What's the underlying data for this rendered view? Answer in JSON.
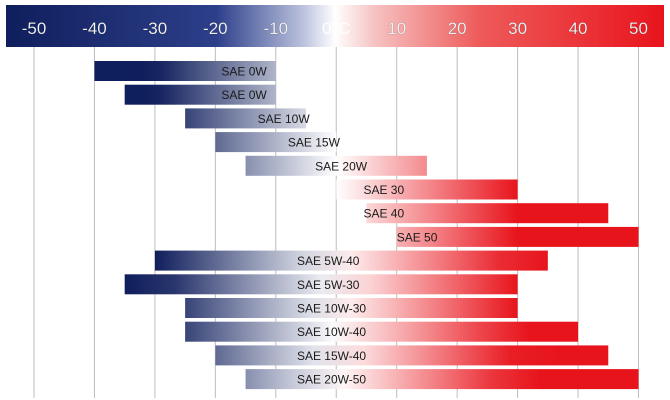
{
  "chart_data": {
    "type": "bar",
    "orientation": "horizontal-range",
    "title": "",
    "xlabel": "",
    "ylabel": "",
    "xlim": [
      -55,
      53
    ],
    "x_ticks": [
      {
        "value": -50,
        "label": "-50"
      },
      {
        "value": -40,
        "label": "-40"
      },
      {
        "value": -30,
        "label": "-30"
      },
      {
        "value": -20,
        "label": "-20"
      },
      {
        "value": -10,
        "label": "-10"
      },
      {
        "value": 0,
        "label": "0°C"
      },
      {
        "value": 10,
        "label": "10"
      },
      {
        "value": 20,
        "label": "20"
      },
      {
        "value": 30,
        "label": "30"
      },
      {
        "value": 40,
        "label": "40"
      },
      {
        "value": 50,
        "label": "50"
      }
    ],
    "grid": true,
    "legend": "none",
    "colors": {
      "cold": "#0f1e5c",
      "neutral": "#ffffff",
      "hot": "#e8141c",
      "grid": "#bdbdbd",
      "label_text": "#1a1a1a",
      "tick_text": "#ffffff"
    },
    "categories": [
      "SAE 0W",
      "SAE 0W",
      "SAE 10W",
      "SAE 15W",
      "SAE 20W",
      "SAE 30",
      "SAE 40",
      "SAE 50",
      "SAE 5W-40",
      "SAE 5W-30",
      "SAE 10W-30",
      "SAE 10W-40",
      "SAE 15W-40",
      "SAE 20W-50"
    ],
    "series": [
      {
        "ranges": [
          [
            -40,
            -10
          ],
          [
            -35,
            -10
          ],
          [
            -25,
            -5
          ],
          [
            -20,
            0
          ],
          [
            -15,
            15
          ],
          [
            0,
            30
          ],
          [
            5,
            45
          ],
          [
            10,
            50
          ],
          [
            -30,
            35
          ],
          [
            -35,
            30
          ],
          [
            -25,
            30
          ],
          [
            -25,
            40
          ],
          [
            -20,
            45
          ],
          [
            -15,
            50
          ]
        ],
        "label_at": [
          -19,
          -19,
          -13,
          -8,
          -3.5,
          4.5,
          4.5,
          10,
          -6.5,
          -6.5,
          -6.5,
          -6.5,
          -6.5,
          -6.5
        ]
      }
    ]
  }
}
